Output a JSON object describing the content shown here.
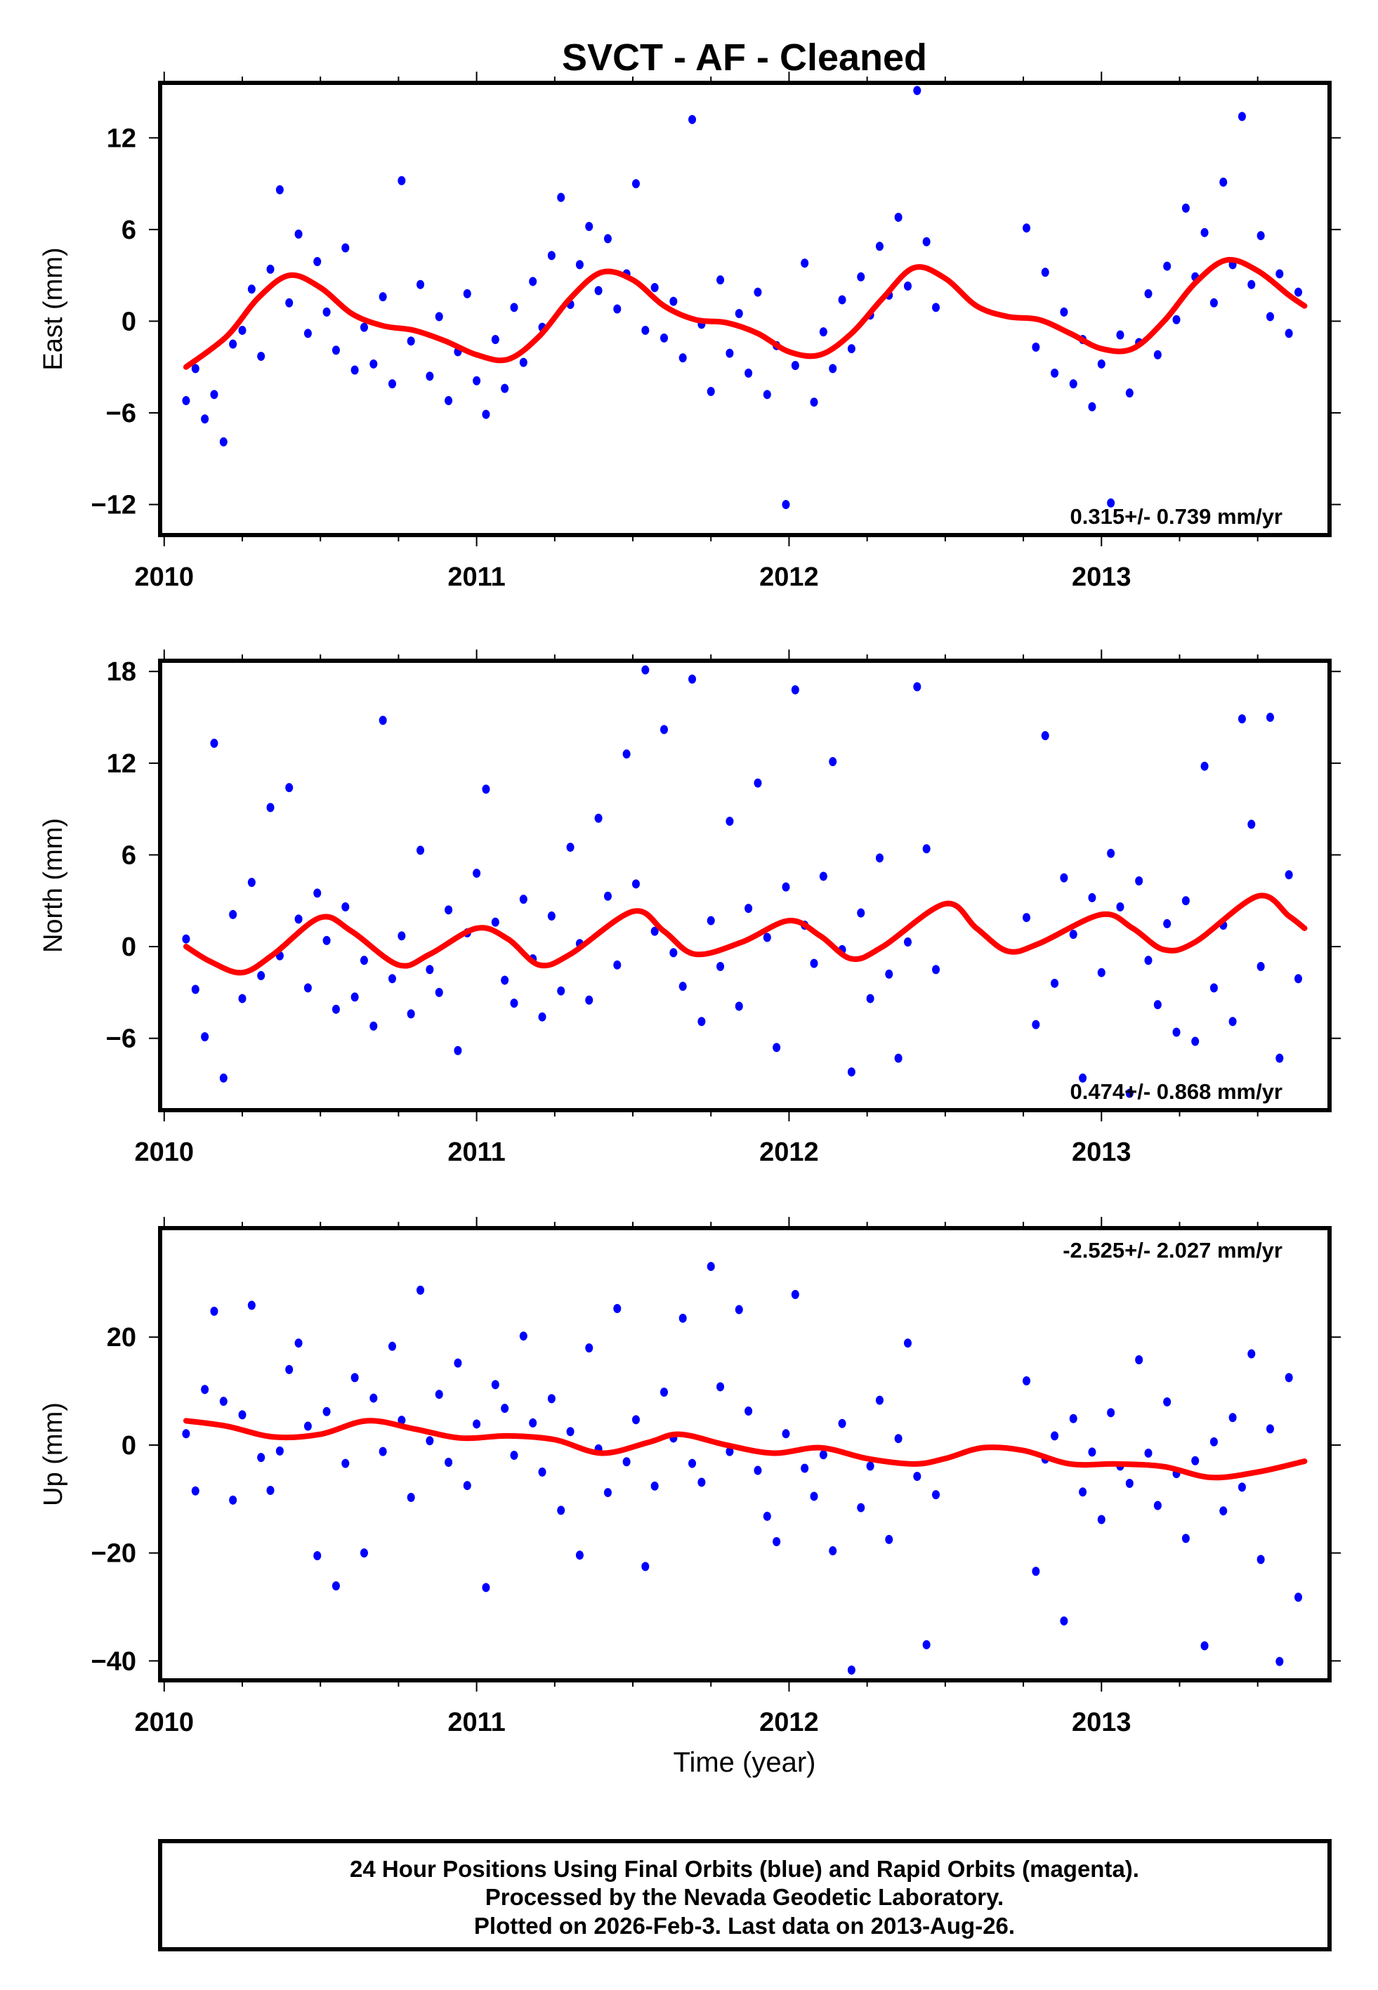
{
  "title": "SVCT  - AF - Cleaned",
  "footer": {
    "lines": [
      "24 Hour Positions Using Final Orbits (blue) and Rapid Orbits (magenta).",
      "Processed by the Nevada Geodetic Laboratory.",
      "Plotted on 2026-Feb-3. Last data on 2013-Aug-26."
    ]
  },
  "colors": {
    "points": "#0000ff",
    "fit": "#ff0000",
    "frame": "#000000"
  },
  "chart_data": [
    {
      "type": "scatter",
      "name": "east",
      "ylabel": "East (mm)",
      "xlabel": "",
      "xlim": [
        2009.987,
        2013.73
      ],
      "ylim": [
        -14,
        15.6
      ],
      "xticks": [
        2010,
        2011,
        2012,
        2013
      ],
      "yticks": [
        -12,
        -6,
        0,
        6,
        12
      ],
      "rate_text": "0.315+/- 0.739 mm/yr",
      "rate_position": "bottom-right",
      "x": [
        2010.07,
        2010.1,
        2010.13,
        2010.16,
        2010.19,
        2010.22,
        2010.25,
        2010.28,
        2010.31,
        2010.34,
        2010.37,
        2010.4,
        2010.43,
        2010.46,
        2010.49,
        2010.52,
        2010.55,
        2010.58,
        2010.61,
        2010.64,
        2010.67,
        2010.7,
        2010.73,
        2010.76,
        2010.79,
        2010.82,
        2010.85,
        2010.88,
        2010.91,
        2010.94,
        2010.97,
        2011.0,
        2011.03,
        2011.06,
        2011.09,
        2011.12,
        2011.15,
        2011.18,
        2011.21,
        2011.24,
        2011.27,
        2011.3,
        2011.33,
        2011.36,
        2011.39,
        2011.42,
        2011.45,
        2011.48,
        2011.51,
        2011.54,
        2011.57,
        2011.6,
        2011.63,
        2011.66,
        2011.69,
        2011.72,
        2011.75,
        2011.78,
        2011.81,
        2011.84,
        2011.87,
        2011.9,
        2011.93,
        2011.96,
        2011.99,
        2012.02,
        2012.05,
        2012.08,
        2012.11,
        2012.14,
        2012.17,
        2012.2,
        2012.23,
        2012.26,
        2012.29,
        2012.32,
        2012.35,
        2012.38,
        2012.41,
        2012.44,
        2012.47,
        2012.76,
        2012.79,
        2012.82,
        2012.85,
        2012.88,
        2012.91,
        2012.94,
        2012.97,
        2013.0,
        2013.03,
        2013.06,
        2013.09,
        2013.12,
        2013.15,
        2013.18,
        2013.21,
        2013.24,
        2013.27,
        2013.3,
        2013.33,
        2013.36,
        2013.39,
        2013.42,
        2013.45,
        2013.48,
        2013.51,
        2013.54,
        2013.57,
        2013.6,
        2013.63
      ],
      "y": [
        -5.2,
        -3.1,
        -6.4,
        -4.8,
        -7.9,
        -1.5,
        -0.6,
        2.1,
        -2.3,
        3.4,
        8.6,
        1.2,
        5.7,
        -0.8,
        3.9,
        0.6,
        -1.9,
        4.8,
        -3.2,
        -0.4,
        -2.8,
        1.6,
        -4.1,
        9.2,
        -1.3,
        2.4,
        -3.6,
        0.3,
        -5.2,
        -2.0,
        1.8,
        -3.9,
        -6.1,
        -1.2,
        -4.4,
        0.9,
        -2.7,
        2.6,
        -0.4,
        4.3,
        8.1,
        1.1,
        3.7,
        6.2,
        2.0,
        5.4,
        0.8,
        3.1,
        9.0,
        -0.6,
        2.2,
        -1.1,
        1.3,
        -2.4,
        13.2,
        -0.2,
        -4.6,
        2.7,
        -2.1,
        0.5,
        -3.4,
        1.9,
        -4.8,
        -1.6,
        -12.0,
        -2.9,
        3.8,
        -5.3,
        -0.7,
        -3.1,
        1.4,
        -1.8,
        2.9,
        0.4,
        4.9,
        1.7,
        6.8,
        2.3,
        15.1,
        5.2,
        0.9,
        6.1,
        -1.7,
        3.2,
        -3.4,
        0.6,
        -4.1,
        -1.2,
        -5.6,
        -2.8,
        -11.9,
        -0.9,
        -4.7,
        -1.4,
        1.8,
        -2.2,
        3.6,
        0.1,
        7.4,
        2.9,
        5.8,
        1.2,
        9.1,
        3.7,
        13.4,
        2.4,
        5.6,
        0.3,
        3.1,
        -0.8,
        1.9
      ],
      "fit": {
        "x": [
          2010.07,
          2010.2,
          2010.3,
          2010.4,
          2010.5,
          2010.6,
          2010.7,
          2010.8,
          2010.9,
          2011.0,
          2011.1,
          2011.2,
          2011.3,
          2011.4,
          2011.5,
          2011.6,
          2011.7,
          2011.8,
          2011.9,
          2012.0,
          2012.1,
          2012.2,
          2012.3,
          2012.4,
          2012.5,
          2012.6,
          2012.7,
          2012.8,
          2012.9,
          2013.0,
          2013.1,
          2013.2,
          2013.3,
          2013.4,
          2013.5,
          2013.6,
          2013.65
        ],
        "y": [
          -3,
          -1,
          1.5,
          3,
          2.2,
          0.5,
          -0.3,
          -0.6,
          -1.3,
          -2.2,
          -2.5,
          -1,
          1.5,
          3.2,
          2.7,
          1,
          0.1,
          -0.1,
          -0.8,
          -2,
          -2.2,
          -0.8,
          1.5,
          3.5,
          2.8,
          1,
          0.3,
          0.1,
          -0.8,
          -1.8,
          -1.8,
          0,
          2.5,
          4,
          3.3,
          1.7,
          1
        ]
      }
    },
    {
      "type": "scatter",
      "name": "north",
      "ylabel": "North (mm)",
      "xlabel": "",
      "xlim": [
        2009.987,
        2013.73
      ],
      "ylim": [
        -10.7,
        18.7
      ],
      "xticks": [
        2010,
        2011,
        2012,
        2013
      ],
      "yticks": [
        -6,
        0,
        6,
        12,
        18
      ],
      "rate_text": "0.474+/- 0.868 mm/yr",
      "rate_position": "bottom-right",
      "x": [
        2010.07,
        2010.1,
        2010.13,
        2010.16,
        2010.19,
        2010.22,
        2010.25,
        2010.28,
        2010.31,
        2010.34,
        2010.37,
        2010.4,
        2010.43,
        2010.46,
        2010.49,
        2010.52,
        2010.55,
        2010.58,
        2010.61,
        2010.64,
        2010.67,
        2010.7,
        2010.73,
        2010.76,
        2010.79,
        2010.82,
        2010.85,
        2010.88,
        2010.91,
        2010.94,
        2010.97,
        2011.0,
        2011.03,
        2011.06,
        2011.09,
        2011.12,
        2011.15,
        2011.18,
        2011.21,
        2011.24,
        2011.27,
        2011.3,
        2011.33,
        2011.36,
        2011.39,
        2011.42,
        2011.45,
        2011.48,
        2011.51,
        2011.54,
        2011.57,
        2011.6,
        2011.63,
        2011.66,
        2011.69,
        2011.72,
        2011.75,
        2011.78,
        2011.81,
        2011.84,
        2011.87,
        2011.9,
        2011.93,
        2011.96,
        2011.99,
        2012.02,
        2012.05,
        2012.08,
        2012.11,
        2012.14,
        2012.17,
        2012.2,
        2012.23,
        2012.26,
        2012.29,
        2012.32,
        2012.35,
        2012.38,
        2012.41,
        2012.44,
        2012.47,
        2012.76,
        2012.79,
        2012.82,
        2012.85,
        2012.88,
        2012.91,
        2012.94,
        2012.97,
        2013.0,
        2013.03,
        2013.06,
        2013.09,
        2013.12,
        2013.15,
        2013.18,
        2013.21,
        2013.24,
        2013.27,
        2013.3,
        2013.33,
        2013.36,
        2013.39,
        2013.42,
        2013.45,
        2013.48,
        2013.51,
        2013.54,
        2013.57,
        2013.6,
        2013.63
      ],
      "y": [
        0.5,
        -2.8,
        -5.9,
        13.3,
        -8.6,
        2.1,
        -3.4,
        4.2,
        -1.9,
        9.1,
        -0.6,
        10.4,
        1.8,
        -2.7,
        3.5,
        0.4,
        -4.1,
        2.6,
        -3.3,
        -0.9,
        -5.2,
        14.8,
        -2.1,
        0.7,
        -4.4,
        6.3,
        -1.5,
        -3.0,
        2.4,
        -6.8,
        0.9,
        4.8,
        10.3,
        1.6,
        -2.2,
        -3.7,
        3.1,
        -0.8,
        -4.6,
        2.0,
        -2.9,
        6.5,
        0.2,
        -3.5,
        8.4,
        3.3,
        -1.2,
        12.6,
        4.1,
        18.1,
        1.0,
        14.2,
        -0.4,
        -2.6,
        17.5,
        -4.9,
        1.7,
        -1.3,
        8.2,
        -3.9,
        2.5,
        10.7,
        0.6,
        -6.6,
        3.9,
        16.8,
        1.4,
        -1.1,
        4.6,
        12.1,
        -0.2,
        -8.2,
        2.2,
        -3.4,
        5.8,
        -1.8,
        -7.3,
        0.3,
        17.0,
        6.4,
        -1.5,
        1.9,
        -5.1,
        13.8,
        -2.4,
        4.5,
        0.8,
        -8.6,
        3.2,
        -1.7,
        6.1,
        2.6,
        -9.6,
        4.3,
        -0.9,
        -3.8,
        1.5,
        -5.6,
        3.0,
        -6.2,
        11.8,
        -2.7,
        1.4,
        -4.9,
        14.9,
        8.0,
        -1.3,
        15.0,
        -7.3,
        4.7,
        -2.1
      ],
      "fit": {
        "x": [
          2010.07,
          2010.15,
          2010.25,
          2010.35,
          2010.5,
          2010.6,
          2010.75,
          2010.85,
          2011.0,
          2011.1,
          2011.2,
          2011.3,
          2011.5,
          2011.6,
          2011.7,
          2011.85,
          2012.0,
          2012.1,
          2012.2,
          2012.3,
          2012.5,
          2012.6,
          2012.7,
          2012.8,
          2013.0,
          2013.1,
          2013.2,
          2013.3,
          2013.5,
          2013.6,
          2013.65
        ],
        "y": [
          0,
          -1,
          -1.7,
          -0.5,
          1.9,
          1,
          -1.2,
          -0.5,
          1.2,
          0.5,
          -1.2,
          -0.5,
          2.3,
          1,
          -0.5,
          0.3,
          1.7,
          0.7,
          -0.8,
          0,
          2.8,
          1.2,
          -0.3,
          0.2,
          2.1,
          1.2,
          -0.2,
          0.3,
          3.3,
          2,
          1.2
        ]
      }
    },
    {
      "type": "scatter",
      "name": "up",
      "ylabel": "Up (mm)",
      "xlabel": "Time (year)",
      "xlim": [
        2009.987,
        2013.73
      ],
      "ylim": [
        -43.6,
        40.2
      ],
      "xticks": [
        2010,
        2011,
        2012,
        2013
      ],
      "yticks": [
        -40,
        -20,
        0,
        20
      ],
      "rate_text": "-2.525+/- 2.027 mm/yr",
      "rate_position": "top-right",
      "x": [
        2010.07,
        2010.1,
        2010.13,
        2010.16,
        2010.19,
        2010.22,
        2010.25,
        2010.28,
        2010.31,
        2010.34,
        2010.37,
        2010.4,
        2010.43,
        2010.46,
        2010.49,
        2010.52,
        2010.55,
        2010.58,
        2010.61,
        2010.64,
        2010.67,
        2010.7,
        2010.73,
        2010.76,
        2010.79,
        2010.82,
        2010.85,
        2010.88,
        2010.91,
        2010.94,
        2010.97,
        2011.0,
        2011.03,
        2011.06,
        2011.09,
        2011.12,
        2011.15,
        2011.18,
        2011.21,
        2011.24,
        2011.27,
        2011.3,
        2011.33,
        2011.36,
        2011.39,
        2011.42,
        2011.45,
        2011.48,
        2011.51,
        2011.54,
        2011.57,
        2011.6,
        2011.63,
        2011.66,
        2011.69,
        2011.72,
        2011.75,
        2011.78,
        2011.81,
        2011.84,
        2011.87,
        2011.9,
        2011.93,
        2011.96,
        2011.99,
        2012.02,
        2012.05,
        2012.08,
        2012.11,
        2012.14,
        2012.17,
        2012.2,
        2012.23,
        2012.26,
        2012.29,
        2012.32,
        2012.35,
        2012.38,
        2012.41,
        2012.44,
        2012.47,
        2012.76,
        2012.79,
        2012.82,
        2012.85,
        2012.88,
        2012.91,
        2012.94,
        2012.97,
        2013.0,
        2013.03,
        2013.06,
        2013.09,
        2013.12,
        2013.15,
        2013.18,
        2013.21,
        2013.24,
        2013.27,
        2013.3,
        2013.33,
        2013.36,
        2013.39,
        2013.42,
        2013.45,
        2013.48,
        2013.51,
        2013.54,
        2013.57,
        2013.6,
        2013.63
      ],
      "y": [
        2.1,
        -8.5,
        10.3,
        24.8,
        8.1,
        -10.2,
        5.6,
        25.9,
        -2.3,
        -8.4,
        -1.1,
        14.0,
        18.9,
        3.5,
        -20.5,
        6.2,
        -26.1,
        -3.4,
        12.5,
        -20.0,
        8.7,
        -1.2,
        18.3,
        4.6,
        -9.7,
        28.7,
        0.8,
        9.4,
        -3.2,
        15.2,
        -7.5,
        3.9,
        -26.4,
        11.2,
        6.8,
        -1.9,
        20.2,
        4.1,
        -5.0,
        8.6,
        -12.1,
        2.5,
        -20.4,
        18.0,
        -0.7,
        -8.8,
        25.3,
        -3.1,
        4.7,
        -22.5,
        -7.6,
        9.8,
        1.3,
        23.5,
        -3.4,
        -6.9,
        33.1,
        10.8,
        -1.2,
        25.1,
        6.3,
        -4.7,
        -13.2,
        -17.9,
        2.1,
        27.9,
        -4.3,
        -9.5,
        -1.8,
        -19.6,
        4.0,
        -41.7,
        -11.6,
        -3.9,
        8.3,
        -17.5,
        1.2,
        18.9,
        -5.8,
        -37.0,
        -9.2,
        11.9,
        -23.4,
        -2.6,
        1.7,
        -32.6,
        4.9,
        -8.7,
        -1.3,
        -13.8,
        6.0,
        -3.9,
        -7.1,
        15.8,
        -1.5,
        -11.2,
        8.0,
        -5.3,
        -17.3,
        -2.9,
        -37.2,
        0.6,
        -12.2,
        5.1,
        -7.8,
        16.9,
        -21.2,
        3.0,
        -40.1,
        12.5,
        -28.2
      ],
      "fit": {
        "x": [
          2010.07,
          2010.2,
          2010.35,
          2010.5,
          2010.65,
          2010.8,
          2010.95,
          2011.1,
          2011.25,
          2011.4,
          2011.55,
          2011.65,
          2011.8,
          2011.95,
          2012.1,
          2012.25,
          2012.4,
          2012.5,
          2012.62,
          2012.75,
          2012.9,
          2013.05,
          2013.2,
          2013.35,
          2013.5,
          2013.65
        ],
        "y": [
          4.5,
          3.5,
          1.5,
          2,
          4.5,
          3,
          1.3,
          1.7,
          1,
          -1.5,
          0.5,
          2,
          0,
          -1.5,
          -0.5,
          -2.5,
          -3.5,
          -2.5,
          -0.5,
          -1,
          -3.5,
          -3.5,
          -4,
          -6,
          -5,
          -3
        ]
      }
    }
  ]
}
